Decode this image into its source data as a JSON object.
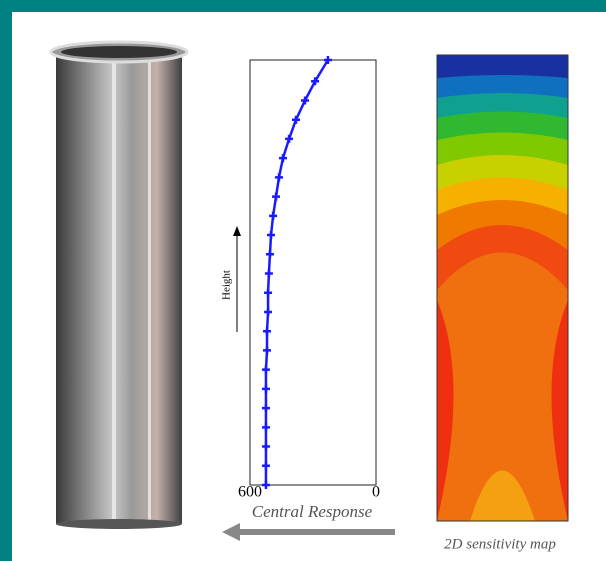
{
  "chart_data": {
    "type": "line",
    "x_label": "Central Response",
    "y_label": "Height",
    "map_label": "2D sensitivity map",
    "x": [
      524,
      524,
      524,
      524,
      524,
      524,
      524,
      519,
      519,
      514,
      514,
      510,
      505,
      500,
      490,
      476,
      462,
      443,
      414,
      381,
      338,
      290,
      229
    ],
    "values": [
      0,
      0.95,
      1.9,
      2.85,
      3.8,
      4.75,
      5.7,
      6.65,
      7.6,
      8.55,
      9.5,
      10.45,
      11.4,
      12.35,
      13.3,
      14.25,
      15.2,
      16.15,
      17.1,
      18.05,
      19,
      19.95,
      21
    ],
    "xlim": [
      600,
      0
    ],
    "ylim": [
      0,
      21
    ],
    "xticks": [
      600,
      0
    ],
    "color": "#1a1aff"
  }
}
